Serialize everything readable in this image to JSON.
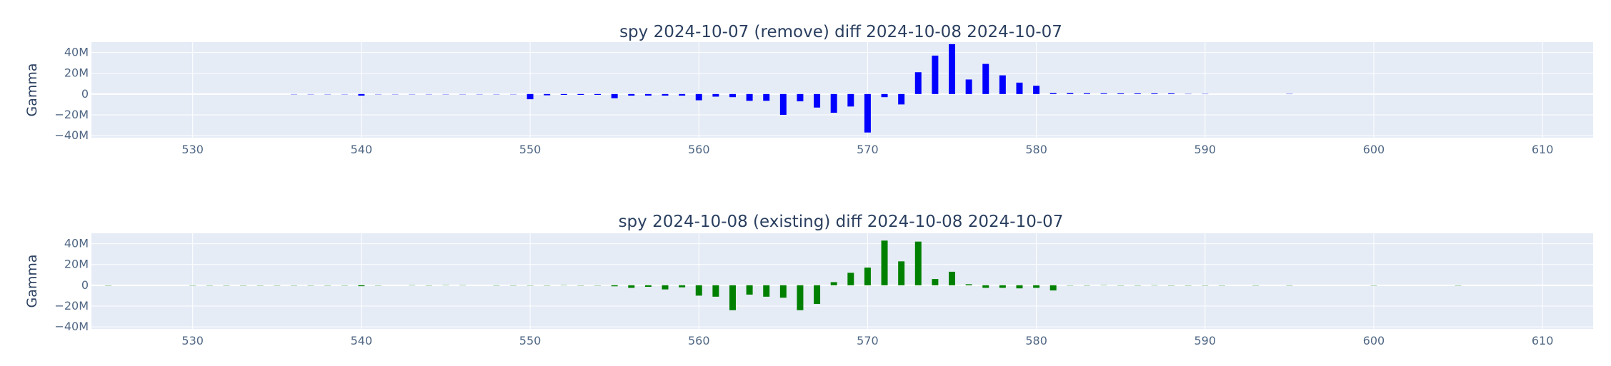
{
  "chart_data": [
    {
      "type": "bar",
      "title": "spy 2024-10-07 (remove) diff 2024-10-08 2024-10-07",
      "xlabel": "",
      "ylabel": "Gamma",
      "xlim": [
        524,
        613
      ],
      "ylim": [
        -42,
        50
      ],
      "grid": true,
      "color": "#0000ff",
      "x_ticks": [
        530,
        540,
        550,
        560,
        570,
        580,
        590,
        600,
        610
      ],
      "y_ticks": [
        -40,
        -20,
        0,
        20,
        40
      ],
      "y_tick_labels": [
        "−40M",
        "−20M",
        "0",
        "20M",
        "40M"
      ],
      "x": [
        536,
        537,
        538,
        539,
        540,
        541,
        542,
        543,
        544,
        545,
        546,
        547,
        548,
        549,
        550,
        551,
        552,
        553,
        554,
        555,
        556,
        557,
        558,
        559,
        560,
        561,
        562,
        563,
        564,
        565,
        566,
        567,
        568,
        569,
        570,
        571,
        572,
        573,
        574,
        575,
        576,
        577,
        578,
        579,
        580,
        581,
        582,
        583,
        584,
        585,
        586,
        587,
        588,
        589,
        590,
        595
      ],
      "values": [
        -0.3,
        -0.3,
        -0.4,
        -0.4,
        -1.5,
        -0.4,
        -0.4,
        -0.4,
        -0.5,
        -0.4,
        -0.4,
        -0.4,
        -0.4,
        -0.4,
        -5,
        -1.2,
        -0.8,
        -0.8,
        -0.8,
        -4,
        -1.5,
        -1.5,
        -1.5,
        -1.5,
        -6,
        -2.5,
        -3,
        -6.5,
        -6.5,
        -20,
        -7,
        -13,
        -18,
        -12,
        -37,
        -3,
        -10,
        21,
        37,
        48,
        14,
        29,
        18,
        11,
        8,
        1,
        1,
        0.8,
        0.7,
        0.6,
        0.6,
        0.6,
        0.6,
        0.5,
        0.5,
        0.5
      ]
    },
    {
      "type": "bar",
      "title": "spy 2024-10-08 (existing) diff 2024-10-08 2024-10-07",
      "xlabel": "",
      "ylabel": "Gamma",
      "xlim": [
        524,
        613
      ],
      "ylim": [
        -42,
        50
      ],
      "grid": true,
      "color": "#008000",
      "x_ticks": [
        530,
        540,
        550,
        560,
        570,
        580,
        590,
        600,
        610
      ],
      "y_ticks": [
        -40,
        -20,
        0,
        20,
        40
      ],
      "y_tick_labels": [
        "−40M",
        "−20M",
        "0",
        "20M",
        "40M"
      ],
      "x": [
        525,
        530,
        531,
        532,
        533,
        534,
        535,
        536,
        537,
        538,
        539,
        540,
        541,
        543,
        544,
        545,
        546,
        548,
        549,
        550,
        551,
        552,
        553,
        554,
        555,
        556,
        557,
        558,
        559,
        560,
        561,
        562,
        563,
        564,
        565,
        566,
        567,
        568,
        569,
        570,
        571,
        572,
        573,
        574,
        575,
        576,
        577,
        578,
        579,
        580,
        581,
        582,
        583,
        584,
        585,
        586,
        587,
        588,
        589,
        590,
        591,
        593,
        595,
        600,
        605
      ],
      "values": [
        -0.3,
        -0.4,
        -0.4,
        -0.4,
        -0.4,
        -0.4,
        -0.4,
        -0.4,
        -0.4,
        -0.4,
        -0.4,
        -0.9,
        -0.4,
        0.4,
        -0.5,
        0.5,
        0.4,
        -0.4,
        -0.4,
        -0.5,
        -0.5,
        0.5,
        -0.5,
        -0.5,
        -1,
        -2.5,
        -1.5,
        -4,
        -2,
        -10,
        -11,
        -24,
        -9,
        -11,
        -12,
        -24,
        -18,
        3,
        12,
        17,
        43,
        23,
        42,
        6,
        13,
        1,
        -2.5,
        -2.5,
        -3,
        -2.5,
        -5,
        -0.5,
        -0.5,
        0.5,
        -0.4,
        -0.3,
        0.3,
        -0.4,
        -0.4,
        -0.4,
        -0.4,
        -0.3,
        -0.3,
        -0.3,
        -0.3
      ]
    }
  ]
}
